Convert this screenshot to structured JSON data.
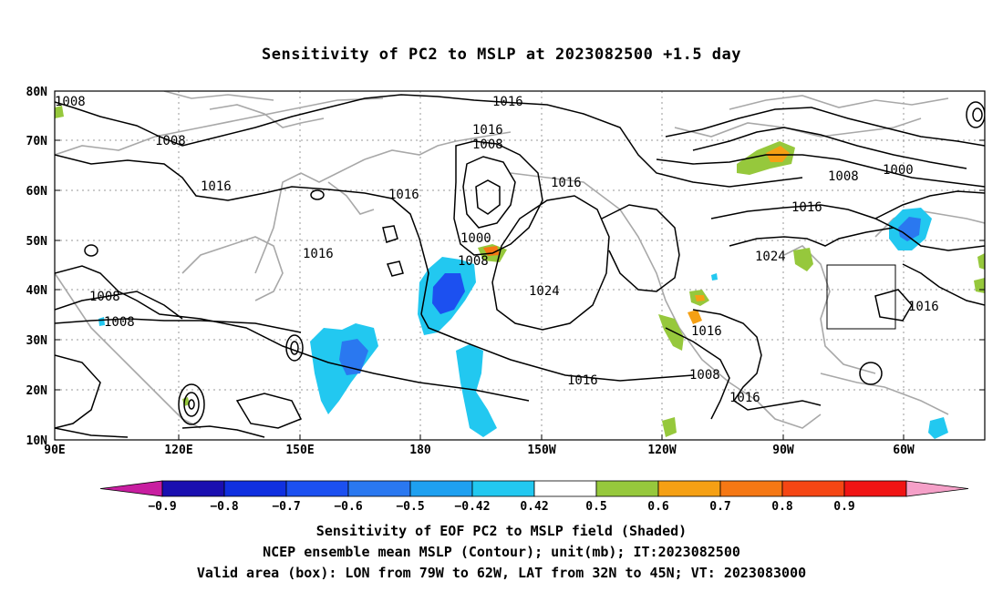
{
  "title": "Sensitivity of PC2 to MSLP at 2023082500 +1.5 day",
  "lat_labels": [
    "80N",
    "70N",
    "60N",
    "50N",
    "40N",
    "30N",
    "20N",
    "10N"
  ],
  "lon_labels": [
    "90E",
    "120E",
    "150E",
    "180",
    "150W",
    "120W",
    "90W",
    "60W"
  ],
  "colorbar": {
    "labels": [
      "-0.9",
      "-0.8",
      "-0.7",
      "-0.6",
      "-0.5",
      "-0.42",
      "0.42",
      "0.5",
      "0.6",
      "0.7",
      "0.8",
      "0.9"
    ],
    "colors": [
      "#c81ea0",
      "#1a0fb0",
      "#1030e0",
      "#1c50f0",
      "#2a78f0",
      "#1ea0f0",
      "#22c8f0",
      "#ffffff",
      "#96c83c",
      "#f5a014",
      "#f57814",
      "#f54614",
      "#f01414",
      "#f5a0c8"
    ]
  },
  "contour_labels": [
    {
      "text": "1008",
      "id": "c1"
    },
    {
      "text": "1016",
      "id": "c2"
    },
    {
      "text": "1016",
      "id": "c3"
    },
    {
      "text": "1008",
      "id": "c4"
    },
    {
      "text": "1008",
      "id": "c5"
    },
    {
      "text": "1016",
      "id": "c6"
    },
    {
      "text": "1016",
      "id": "c7"
    },
    {
      "text": "1016",
      "id": "c8"
    },
    {
      "text": "1000",
      "id": "c9"
    },
    {
      "text": "1008",
      "id": "c10"
    },
    {
      "text": "1024",
      "id": "c11"
    },
    {
      "text": "1008",
      "id": "c12"
    },
    {
      "text": "1008",
      "id": "c13"
    },
    {
      "text": "1016",
      "id": "c14"
    },
    {
      "text": "1024",
      "id": "c15"
    },
    {
      "text": "1008",
      "id": "c16"
    },
    {
      "text": "1000",
      "id": "c17"
    },
    {
      "text": "1016",
      "id": "c18"
    },
    {
      "text": "1016",
      "id": "c19"
    },
    {
      "text": "1016",
      "id": "c20"
    },
    {
      "text": "1008",
      "id": "c21"
    },
    {
      "text": "1016",
      "id": "c22"
    },
    {
      "text": "1016",
      "id": "c23"
    }
  ],
  "captions": {
    "line1": "Sensitivity of EOF PC2 to MSLP field (Shaded)",
    "line2": "NCEP ensemble mean MSLP (Contour); unit(mb); IT:2023082500",
    "line3": "Valid area (box): LON from 79W to 62W, LAT from 32N to 45N; VT: 2023083000"
  }
}
